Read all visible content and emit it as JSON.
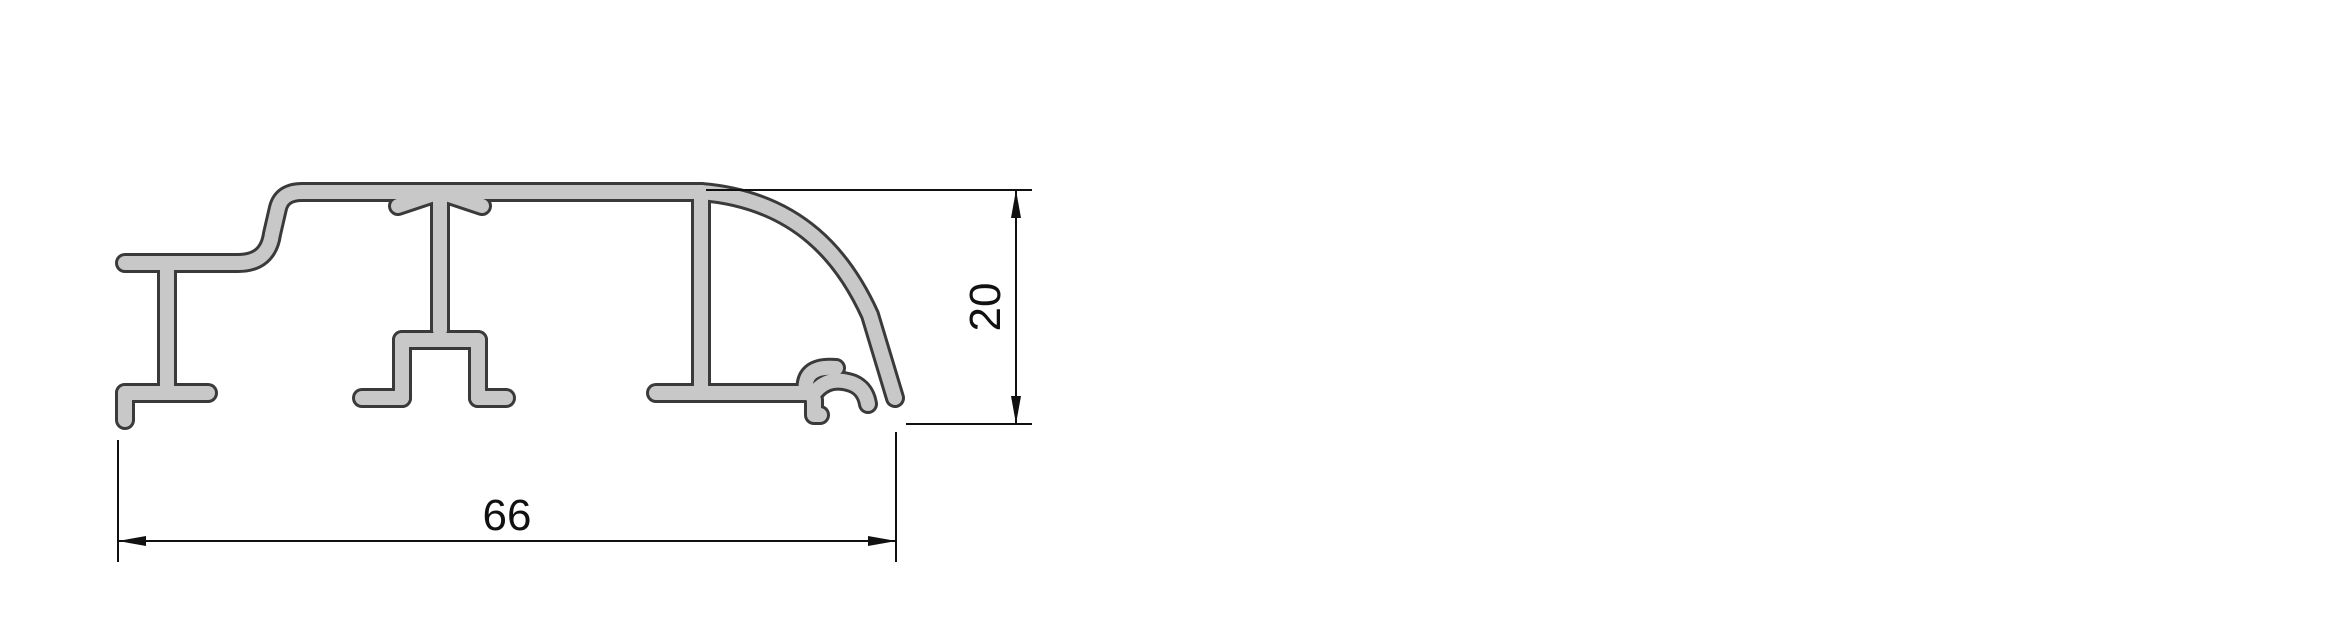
{
  "drawing": {
    "profile_fill": "#c8c8c8",
    "outline_color": "#3a3a3a",
    "dimension_color": "#111111"
  },
  "dimensions": {
    "width_label": "66",
    "height_label": "20"
  }
}
